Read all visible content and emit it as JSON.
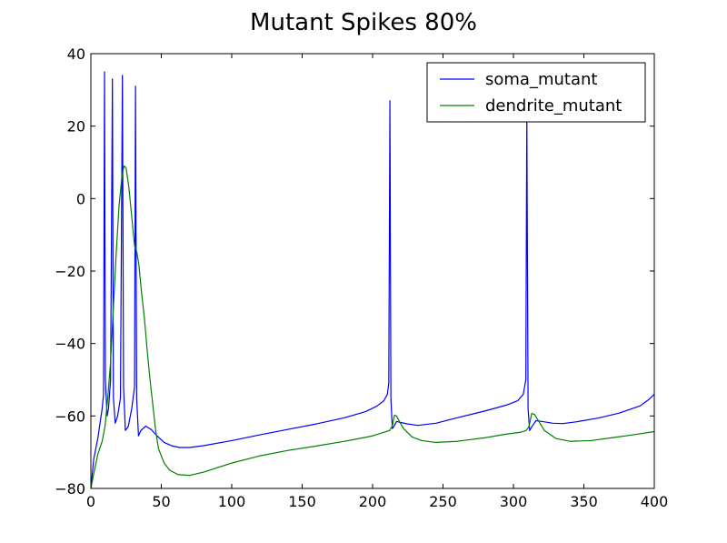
{
  "chart_data": {
    "type": "line",
    "title": "Mutant Spikes 80%",
    "xlabel": "",
    "ylabel": "",
    "xlim": [
      0,
      400
    ],
    "ylim": [
      -80,
      40
    ],
    "x_ticks": [
      0,
      50,
      100,
      150,
      200,
      250,
      300,
      350,
      400
    ],
    "y_ticks": [
      -80,
      -60,
      -40,
      -20,
      0,
      20,
      40
    ],
    "x_tick_labels": [
      "0",
      "50",
      "100",
      "150",
      "200",
      "250",
      "300",
      "350",
      "400"
    ],
    "y_tick_labels": [
      "−80",
      "−60",
      "−40",
      "−20",
      "0",
      "20",
      "40"
    ],
    "grid": false,
    "legend_position": "upper-right",
    "series": [
      {
        "name": "soma_mutant",
        "color": "#0000ff",
        "points": [
          [
            0,
            -80
          ],
          [
            2,
            -72
          ],
          [
            5,
            -66
          ],
          [
            8,
            -58
          ],
          [
            9,
            -54
          ],
          [
            9.7,
            35
          ],
          [
            10.3,
            -50
          ],
          [
            11.5,
            -60
          ],
          [
            12.5,
            -58
          ],
          [
            14,
            -50
          ],
          [
            15.3,
            33
          ],
          [
            16,
            -55
          ],
          [
            17.3,
            -62
          ],
          [
            19,
            -60
          ],
          [
            21,
            -55
          ],
          [
            22.4,
            34
          ],
          [
            23.2,
            -52
          ],
          [
            24.5,
            -64
          ],
          [
            26.5,
            -63
          ],
          [
            29,
            -58
          ],
          [
            31,
            -52
          ],
          [
            31.7,
            31
          ],
          [
            32.5,
            -55
          ],
          [
            33.8,
            -65.5
          ],
          [
            35.5,
            -64
          ],
          [
            39,
            -62.8
          ],
          [
            43,
            -63.8
          ],
          [
            47,
            -65.5
          ],
          [
            52,
            -67.3
          ],
          [
            58,
            -68.3
          ],
          [
            63,
            -68.7
          ],
          [
            70,
            -68.7
          ],
          [
            80,
            -68.2
          ],
          [
            100,
            -66.8
          ],
          [
            120,
            -65.2
          ],
          [
            140,
            -63.7
          ],
          [
            160,
            -62.2
          ],
          [
            180,
            -60.5
          ],
          [
            195,
            -58.8
          ],
          [
            203,
            -57.3
          ],
          [
            208,
            -55.8
          ],
          [
            210.5,
            -54
          ],
          [
            211.5,
            -51
          ],
          [
            212.3,
            27
          ],
          [
            213,
            -55
          ],
          [
            214,
            -63.5
          ],
          [
            215,
            -63
          ],
          [
            217,
            -61.5
          ],
          [
            220,
            -61.8
          ],
          [
            225,
            -62.2
          ],
          [
            232,
            -62.6
          ],
          [
            245,
            -62
          ],
          [
            260,
            -60.5
          ],
          [
            280,
            -58.6
          ],
          [
            295,
            -57
          ],
          [
            303,
            -55.8
          ],
          [
            307,
            -54
          ],
          [
            308.8,
            -50
          ],
          [
            309.5,
            23
          ],
          [
            310.4,
            -58
          ],
          [
            311.5,
            -64
          ],
          [
            313,
            -63
          ],
          [
            316,
            -61.3
          ],
          [
            320,
            -61.5
          ],
          [
            328,
            -62
          ],
          [
            335,
            -62.1
          ],
          [
            345,
            -61.6
          ],
          [
            360,
            -60.6
          ],
          [
            375,
            -59.2
          ],
          [
            390,
            -57.2
          ],
          [
            396,
            -55.5
          ],
          [
            400,
            -54
          ]
        ]
      },
      {
        "name": "dendrite_mutant",
        "color": "#008000",
        "points": [
          [
            0,
            -80
          ],
          [
            2,
            -76
          ],
          [
            5,
            -70.5
          ],
          [
            8,
            -67
          ],
          [
            10,
            -63
          ],
          [
            12,
            -55
          ],
          [
            14,
            -45
          ],
          [
            16,
            -30
          ],
          [
            18,
            -15
          ],
          [
            20,
            -2
          ],
          [
            22,
            6
          ],
          [
            23.5,
            9
          ],
          [
            25,
            8.5
          ],
          [
            27,
            3
          ],
          [
            29,
            -5
          ],
          [
            31,
            -13
          ],
          [
            32.5,
            -14.5
          ],
          [
            34,
            -18
          ],
          [
            36,
            -26
          ],
          [
            38,
            -33
          ],
          [
            40,
            -42
          ],
          [
            42,
            -50
          ],
          [
            44,
            -57
          ],
          [
            46,
            -64
          ],
          [
            48,
            -69
          ],
          [
            52,
            -73
          ],
          [
            56,
            -75
          ],
          [
            62,
            -76.2
          ],
          [
            70,
            -76.4
          ],
          [
            80,
            -75.5
          ],
          [
            100,
            -73
          ],
          [
            120,
            -71
          ],
          [
            140,
            -69.5
          ],
          [
            160,
            -68.3
          ],
          [
            180,
            -67
          ],
          [
            200,
            -65.5
          ],
          [
            208,
            -64.5
          ],
          [
            212,
            -64
          ],
          [
            214,
            -62.8
          ],
          [
            215.5,
            -59.8
          ],
          [
            217,
            -60
          ],
          [
            219,
            -61.5
          ],
          [
            222,
            -63.5
          ],
          [
            228,
            -65.8
          ],
          [
            235,
            -66.8
          ],
          [
            245,
            -67.3
          ],
          [
            260,
            -67
          ],
          [
            280,
            -66
          ],
          [
            295,
            -65
          ],
          [
            305,
            -64.5
          ],
          [
            309,
            -64
          ],
          [
            311,
            -63
          ],
          [
            313,
            -59.3
          ],
          [
            315,
            -59.6
          ],
          [
            318,
            -61.5
          ],
          [
            322,
            -64
          ],
          [
            330,
            -66.2
          ],
          [
            340,
            -67
          ],
          [
            355,
            -66.8
          ],
          [
            370,
            -66
          ],
          [
            385,
            -65.2
          ],
          [
            400,
            -64.3
          ]
        ]
      }
    ]
  }
}
